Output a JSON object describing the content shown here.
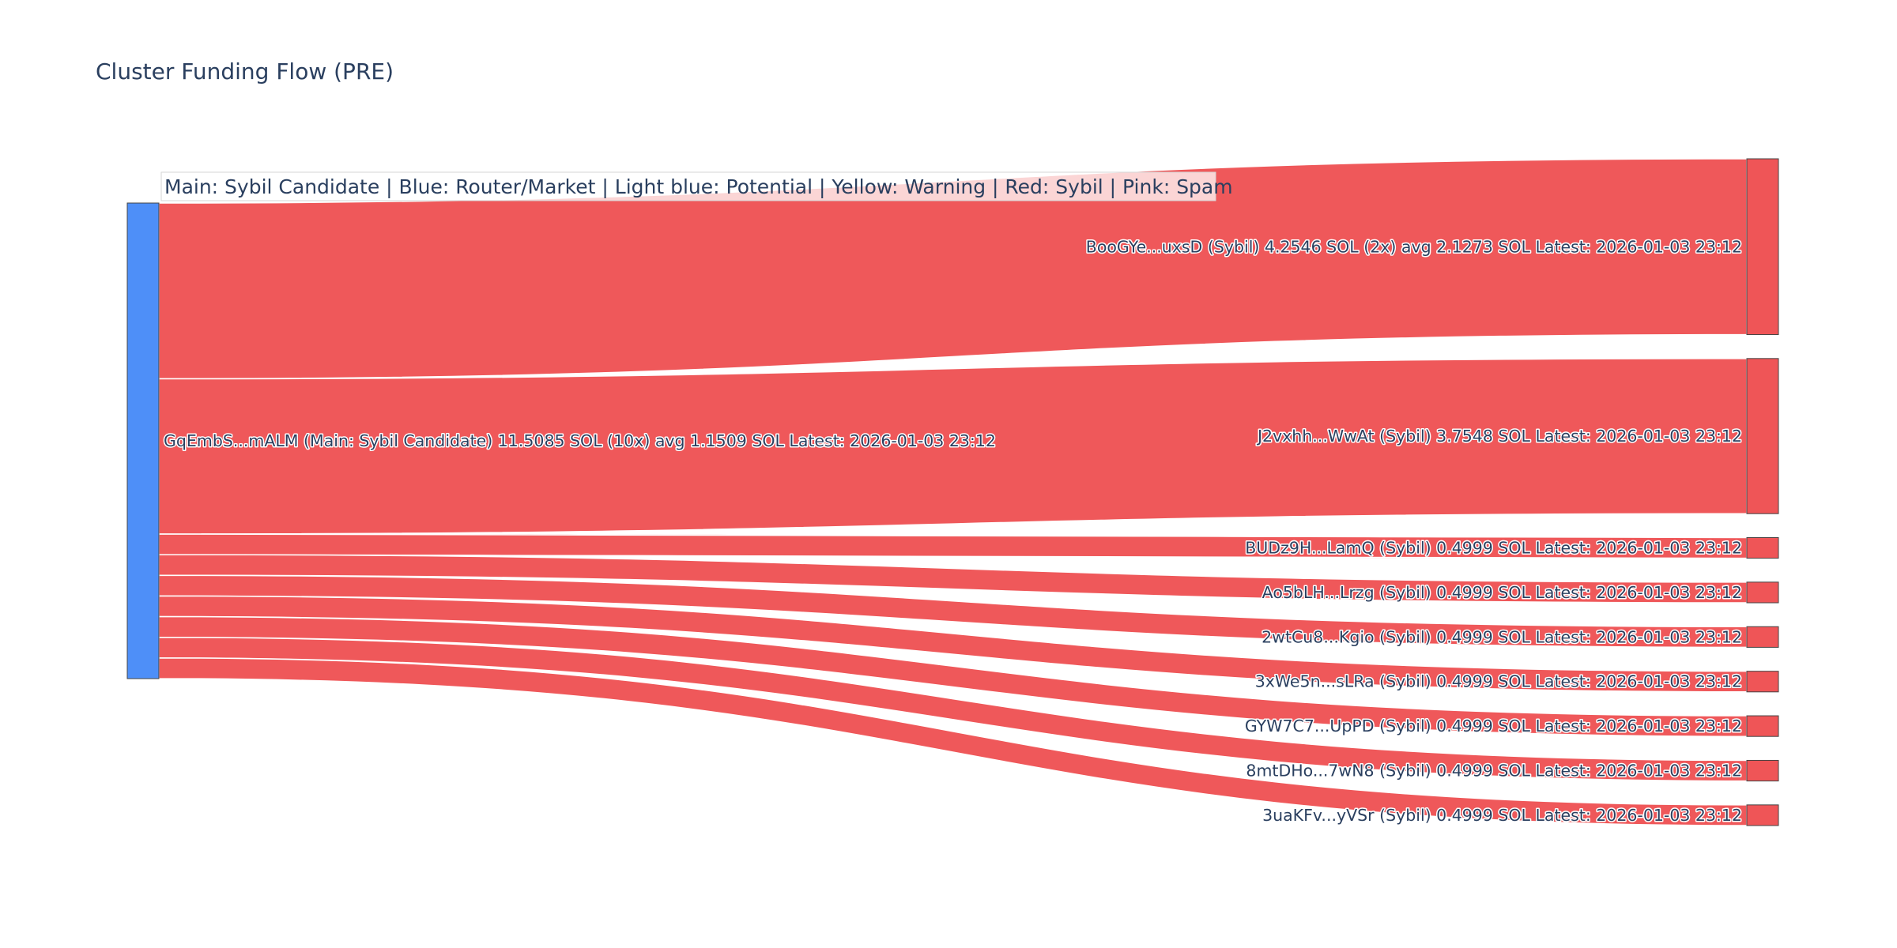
{
  "chart_data": {
    "type": "sankey",
    "title": "Cluster Funding Flow (PRE)",
    "legend_note": "Main: Sybil Candidate  |  Blue: Router/Market | Light blue: Potential | Yellow: Warning | Red: Sybil | Pink: Spam",
    "source": {
      "label": "GqEmbS...mALM (Main: Sybil Candidate) 11.5085 SOL (10x) avg 1.1509 SOL Latest: 2026-01-03 23:12",
      "value": 11.5085,
      "color": "#4e8ff8"
    },
    "link_color": "#ef5557",
    "targets": [
      {
        "label": "BooGYe...uxsD (Sybil) 4.2546 SOL (2x) avg 2.1273 SOL Latest: 2026-01-03 23:12",
        "value": 4.2546,
        "color": "#ef5557"
      },
      {
        "label": "J2vxhh...WwAt (Sybil) 3.7548 SOL Latest: 2026-01-03 23:12",
        "value": 3.7548,
        "color": "#ef5557"
      },
      {
        "label": "BUDz9H...LamQ (Sybil) 0.4999 SOL Latest: 2026-01-03 23:12",
        "value": 0.4999,
        "color": "#ef5557"
      },
      {
        "label": "Ao5bLH...Lrzg (Sybil) 0.4999 SOL Latest: 2026-01-03 23:12",
        "value": 0.4999,
        "color": "#ef5557"
      },
      {
        "label": "2wtCu8...Kgio (Sybil) 0.4999 SOL Latest: 2026-01-03 23:12",
        "value": 0.4999,
        "color": "#ef5557"
      },
      {
        "label": "3xWe5n...sLRa (Sybil) 0.4999 SOL Latest: 2026-01-03 23:12",
        "value": 0.4999,
        "color": "#ef5557"
      },
      {
        "label": "GYW7C7...UpPD (Sybil) 0.4999 SOL Latest: 2026-01-03 23:12",
        "value": 0.4999,
        "color": "#ef5557"
      },
      {
        "label": "8mtDHo...7wN8 (Sybil) 0.4999 SOL Latest: 2026-01-03 23:12",
        "value": 0.4999,
        "color": "#ef5557"
      },
      {
        "label": "3uaKFv...yVSr (Sybil) 0.4999 SOL Latest: 2026-01-03 23:12",
        "value": 0.4999,
        "color": "#ef5557"
      }
    ]
  }
}
